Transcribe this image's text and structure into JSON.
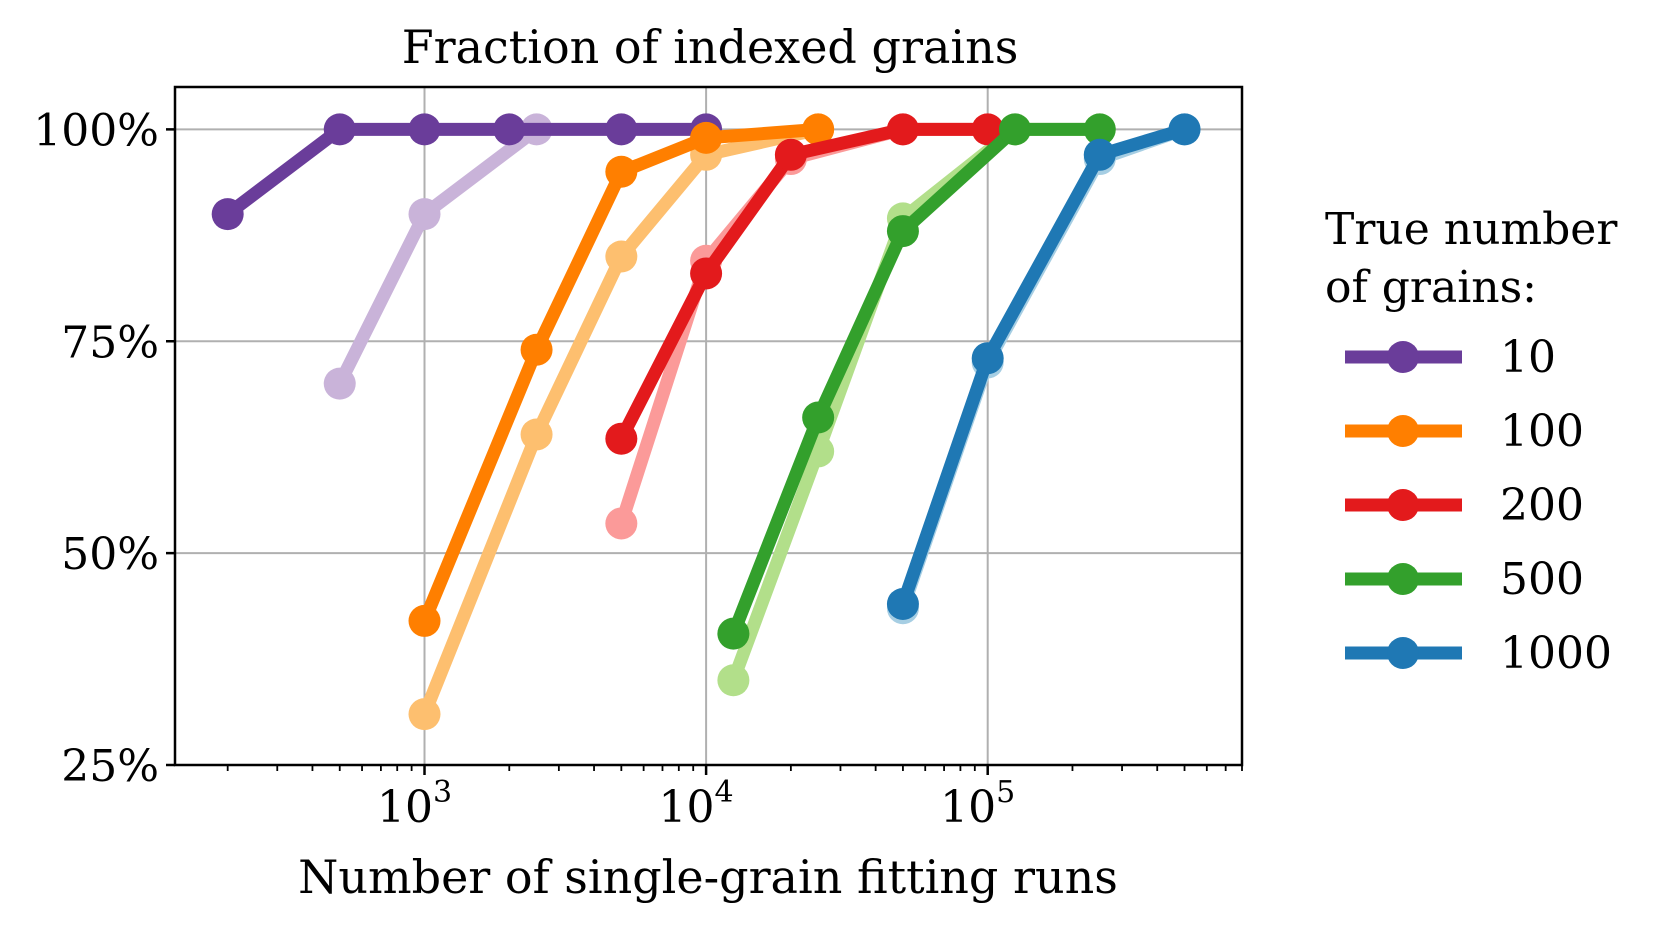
{
  "chart_data": {
    "type": "line",
    "title": "Fraction of indexed grains",
    "xlabel": "Number of single-grain fitting runs",
    "ylabel": "",
    "xscale": "log",
    "xlim": [
      130,
      800000
    ],
    "ylim": [
      25,
      105
    ],
    "x_ticks": [
      {
        "value": 1000,
        "base": "10",
        "exp": "3"
      },
      {
        "value": 10000,
        "base": "10",
        "exp": "4"
      },
      {
        "value": 100000,
        "base": "10",
        "exp": "5"
      }
    ],
    "y_ticks": [
      {
        "value": 25,
        "label": "25%"
      },
      {
        "value": 50,
        "label": "50%"
      },
      {
        "value": 75,
        "label": "75%"
      },
      {
        "value": 100,
        "label": "100%"
      }
    ],
    "grid": true,
    "legend": {
      "title_line1": "True number",
      "title_line2": "of grains:",
      "placement": "right-outside"
    },
    "series": [
      {
        "name": "10 (faint)",
        "color": "#c9b3d9",
        "legend": false,
        "x": [
          500,
          1000,
          2500
        ],
        "y": [
          70,
          90,
          100
        ]
      },
      {
        "name": "100 (faint)",
        "color": "#fdbf6f",
        "legend": false,
        "x": [
          1000,
          2500,
          5000,
          10000,
          25000
        ],
        "y": [
          31,
          64,
          85,
          97,
          100
        ]
      },
      {
        "name": "200 (faint)",
        "color": "#fb9a99",
        "legend": false,
        "x": [
          5000,
          10000,
          20000,
          50000,
          100000
        ],
        "y": [
          53.5,
          84.5,
          96.5,
          100,
          100
        ]
      },
      {
        "name": "500 (faint)",
        "color": "#b2df8a",
        "legend": false,
        "x": [
          12500,
          25000,
          50000,
          125000,
          250000
        ],
        "y": [
          35,
          62,
          89.5,
          100,
          100
        ]
      },
      {
        "name": "1000 (faint)",
        "color": "#a6cee3",
        "legend": false,
        "x": [
          50000,
          100000,
          250000,
          500000
        ],
        "y": [
          43.5,
          72.5,
          96.5,
          100
        ]
      },
      {
        "name": "10",
        "color": "#6a3d9a",
        "legend": true,
        "x": [
          200,
          500,
          1000,
          2000,
          5000,
          10000
        ],
        "y": [
          90,
          100,
          100,
          100,
          100,
          100
        ]
      },
      {
        "name": "100",
        "color": "#ff7f00",
        "legend": true,
        "x": [
          1000,
          2500,
          5000,
          10000,
          25000
        ],
        "y": [
          42,
          74,
          95,
          99,
          100
        ]
      },
      {
        "name": "200",
        "color": "#e31a1c",
        "legend": true,
        "x": [
          5000,
          10000,
          20000,
          50000,
          100000
        ],
        "y": [
          63.5,
          83,
          97,
          100,
          100
        ]
      },
      {
        "name": "500",
        "color": "#33a02c",
        "legend": true,
        "x": [
          12500,
          25000,
          50000,
          125000,
          250000
        ],
        "y": [
          40.5,
          66,
          88,
          100,
          100
        ]
      },
      {
        "name": "1000",
        "color": "#1f78b4",
        "legend": true,
        "x": [
          50000,
          100000,
          250000,
          500000
        ],
        "y": [
          44,
          73,
          97,
          100
        ]
      }
    ]
  }
}
